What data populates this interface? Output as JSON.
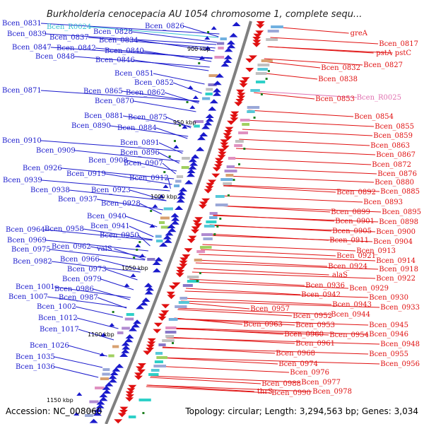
{
  "title": "Burkholderia cenocepacia AU 1054 chromosome 1, complete sequ...",
  "footer": {
    "accession": "Accession: NC_008060",
    "summary": "Topology: circular; Length: 3,294,563 bp; Genes: 3,034"
  },
  "colors": {
    "forward_strand": "#1a1acc",
    "reverse_strand": "#e01010",
    "trna": "#33c0d0",
    "rrna": "#e070b0",
    "gc_marker": "#208020",
    "backbone": "#808080"
  },
  "kbp_ticks": [
    "900 kbp",
    "950 kbp",
    "1000 kbp",
    "1050 kbp",
    "1100 kbp",
    "1150 kbp"
  ],
  "left_labels": [
    "Bcen_0831",
    "Bcen_R0024",
    "Bcen_0828",
    "Bcen_0826",
    "Bcen_0839",
    "Bcen_0837",
    "Bcen_0834",
    "Bcen_0847",
    "Bcen_0842",
    "Bcen_0840",
    "Bcen_0848",
    "Bcen_0846",
    "Bcen_0851",
    "Bcen_0852",
    "Bcen_0871",
    "Bcen_0865",
    "Bcen_0862",
    "Bcen_0870",
    "Bcen_0881",
    "Bcen_0875",
    "Bcen_0890",
    "Bcen_0884",
    "Bcen_0891",
    "Bcen_0910",
    "Bcen_0896",
    "Bcen_0909",
    "Bcen_0908",
    "Bcen_0907",
    "Bcen_0926",
    "Bcen_0919",
    "Bcen_0912",
    "Bcen_0939",
    "Bcen_0923",
    "Bcen_0938",
    "Bcen_0937",
    "Bcen_0928",
    "Bcen_0940",
    "Bcen_0941",
    "Bcen_0964",
    "Bcen_0958",
    "Bcen_0950",
    "Bcen_0969",
    "Bcen_0962",
    "valS",
    "Bcen_0975",
    "Bcen_0966",
    "Bcen_0982",
    "Bcen_0973",
    "Bcen_0979",
    "Bcen_1001",
    "Bcen_0986",
    "Bcen_1007",
    "Bcen_0987",
    "Bcen_1002",
    "Bcen_1012",
    "Bcen_1017",
    "Bcen_1026",
    "Bcen_1035",
    "Bcen_1036"
  ],
  "right_labels": [
    "greA",
    "Bcen_0817",
    "pstA",
    "pstC",
    "Bcen_0827",
    "Bcen_0832",
    "Bcen_0838",
    "Bcen_0853",
    "Bcen_R0025",
    "Bcen_0854",
    "Bcen_0855",
    "Bcen_0859",
    "Bcen_0863",
    "Bcen_0867",
    "Bcen_0872",
    "Bcen_0876",
    "Bcen_0880",
    "Bcen_0892",
    "Bcen_0885",
    "Bcen_0893",
    "Bcen_0899",
    "Bcen_0895",
    "Bcen_0901",
    "Bcen_0898",
    "Bcen_0905",
    "Bcen_0900",
    "Bcen_0911",
    "Bcen_0904",
    "Bcen_0913",
    "Bcen_0921",
    "Bcen_0914",
    "Bcen_0924",
    "Bcen_0918",
    "alaS",
    "Bcen_0922",
    "Bcen_0936",
    "Bcen_0929",
    "Bcen_0942",
    "Bcen_0930",
    "Bcen_0943",
    "Bcen_0933",
    "Bcen_0957",
    "Bcen_0944",
    "Bcen_0952",
    "Bcen_0953",
    "Bcen_0945",
    "Bcen_0963",
    "Bcen_0960",
    "Bcen_0954",
    "Bcen_0946",
    "Bcen_0961",
    "Bcen_0948",
    "Bcen_0968",
    "Bcen_0955",
    "Bcen_0974",
    "Bcen_0956",
    "Bcen_0976",
    "Bcen_0977",
    "Bcen_0988",
    "Bcen_0978",
    "thrS",
    "Bcen_0990"
  ]
}
